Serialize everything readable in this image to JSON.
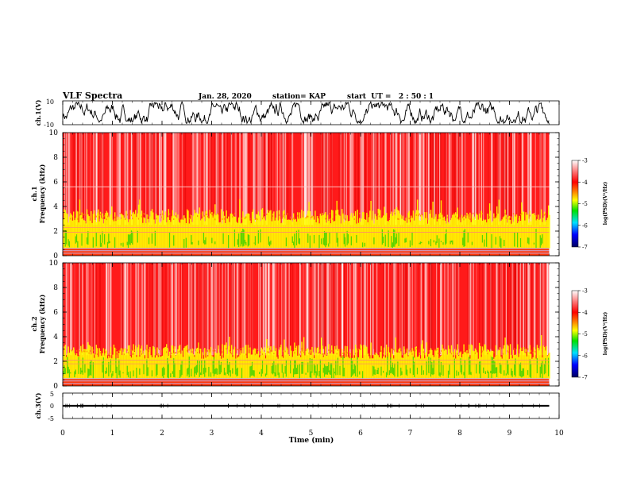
{
  "header": {
    "title": "VLF Spectra",
    "date": "Jan. 28, 2020",
    "station": "station= KAP",
    "start": "start  UT =   2 : 50 : 1"
  },
  "colors": {
    "spectrogram_background": "#ff1a1a",
    "colormap": [
      "#000080",
      "#0000ff",
      "#00e0ff",
      "#00e000",
      "#ffff00",
      "#ff8000",
      "#ff0000",
      "#ffffff"
    ]
  },
  "chart_data": [
    {
      "type": "line",
      "name": "ch1-waveform",
      "ylabel": "ch.1(V)",
      "ylim": [
        -10,
        10
      ],
      "yticks": [
        "10",
        "-10"
      ],
      "xlim": [
        0,
        10
      ],
      "series": [
        {
          "x_range": [
            0,
            9.8
          ],
          "behavior": "noisy waveform oscillating mostly between about -9 and 9 V"
        }
      ]
    },
    {
      "type": "heatmap",
      "name": "ch1-spectrogram",
      "ylabel": "ch.1\nFrequency (kHz)",
      "ylim": [
        0,
        10
      ],
      "yticks": [
        "0",
        "2",
        "4",
        "6",
        "8",
        "10"
      ],
      "xlim": [
        0,
        10
      ],
      "data_extent_min": 9.8,
      "colorbar": {
        "label": "log(PSD)(V²/Hz)",
        "range": [
          -7,
          -3
        ],
        "ticks": [
          "-3",
          "-4",
          "-5",
          "-6",
          "-7"
        ]
      },
      "bands": [
        {
          "freq_range_khz": [
            0,
            0.6
          ],
          "level": "striped, mixed",
          "horizontal_lines_khz": [
            0.2,
            0.4,
            0.6
          ]
        },
        {
          "freq_range_khz": [
            0.6,
            3.2
          ],
          "level": "-4.8 (yellow/green)"
        },
        {
          "freq_range_khz": [
            3.2,
            10
          ],
          "level": "-4 (red)"
        }
      ],
      "horizontal_lines_khz": [
        1.9,
        2.3,
        5.6
      ]
    },
    {
      "type": "heatmap",
      "name": "ch2-spectrogram",
      "ylabel": "ch.2\nFrequency (kHz)",
      "ylim": [
        0,
        10
      ],
      "yticks": [
        "0",
        "2",
        "4",
        "6",
        "8",
        "10"
      ],
      "xlim": [
        0,
        10
      ],
      "data_extent_min": 9.8,
      "colorbar": {
        "label": "log(PSD)(V²/Hz)",
        "range": [
          -7,
          -3
        ],
        "ticks": [
          "-3",
          "-4",
          "-5",
          "-6",
          "-7"
        ]
      },
      "bands": [
        {
          "freq_range_khz": [
            0,
            0.6
          ],
          "level": "striped, mixed",
          "horizontal_lines_khz": [
            0.2,
            0.4,
            0.6
          ]
        },
        {
          "freq_range_khz": [
            0.6,
            2.8
          ],
          "level": "-5 (green/yellow)"
        },
        {
          "freq_range_khz": [
            2.8,
            10
          ],
          "level": "-4 (red)"
        }
      ],
      "horizontal_lines_khz": [
        1.8,
        2.1
      ]
    },
    {
      "type": "line",
      "name": "ch3-waveform",
      "ylabel": "ch.3(V)",
      "ylim": [
        -5,
        5
      ],
      "yticks": [
        "5",
        "0",
        "-5"
      ],
      "xlim": [
        0,
        10
      ],
      "series": [
        {
          "x_range": [
            0,
            9.8
          ],
          "behavior": "narrow band near 0 V (about -0.3 to 0.3 V)"
        }
      ]
    }
  ],
  "xaxis": {
    "label": "Time (min)",
    "ticks": [
      "0",
      "1",
      "2",
      "3",
      "4",
      "5",
      "6",
      "7",
      "8",
      "9",
      "10"
    ]
  }
}
